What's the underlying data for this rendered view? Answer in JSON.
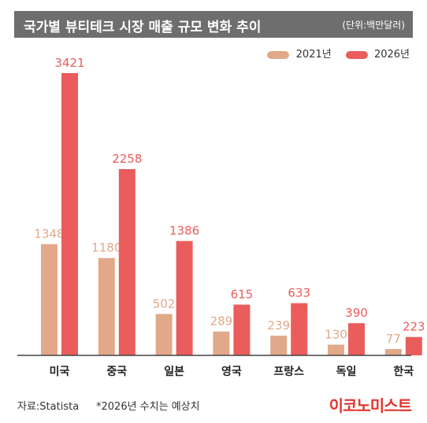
{
  "header": {
    "title": "국가별 뷰티테크 시장 매출 규모 변화 추이",
    "unit": "(단위:백만달러)"
  },
  "footer": {
    "source": "자료:Statista",
    "note": "*2026년 수치는 예상치",
    "brand": "이코노미스트"
  },
  "colors": {
    "series_2021": "#e1a98a",
    "series_2026": "#ea5d5c",
    "title_bg": "#6e6e6e"
  },
  "chart_data": {
    "type": "bar",
    "categories": [
      "미국",
      "중국",
      "일본",
      "영국",
      "프랑스",
      "독일",
      "한국"
    ],
    "series": [
      {
        "name": "2021년",
        "values": [
          1348,
          1180,
          502,
          289,
          239,
          130,
          77
        ]
      },
      {
        "name": "2026년",
        "values": [
          3421,
          2258,
          1386,
          615,
          633,
          390,
          223
        ]
      }
    ],
    "ylim": [
      0,
      3421
    ],
    "legend": "top-right",
    "grid": false
  }
}
